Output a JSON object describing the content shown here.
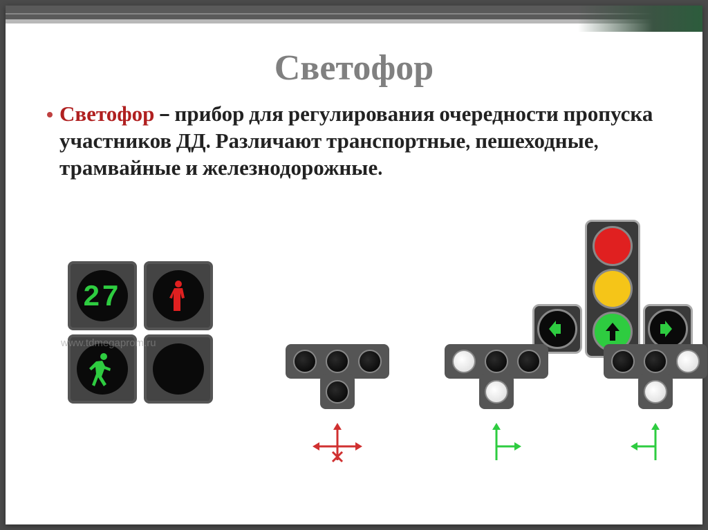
{
  "slide": {
    "title": "Светофор",
    "title_color": "#808080",
    "title_fontsize": 52,
    "term": "Светофор",
    "term_color": "#b02020",
    "definition_rest": " – прибор для регулирования очередности пропуска участников ДД. Различают транспортные, пешеходные, трамвайные и железнодорожные.",
    "body_fontsize": 31,
    "bullet_color": "#bf4040"
  },
  "frame": {
    "page_bg": "#4a4a4a",
    "slide_bg": "#ffffff",
    "topbar_color": "#5a5a5a",
    "topbar_underline": "#b8b8b8",
    "corner_accent": "#2c5c3c"
  },
  "pedestrian_signals": {
    "box_bg": "#444444",
    "box_border": "#555555",
    "circle_bg": "#0a0a0a",
    "countdown_value": "27",
    "countdown_color": "#2ecc40",
    "stand_figure_color": "#e02020",
    "walk_figure_color": "#2ecc40"
  },
  "t_traffic_light": {
    "housing_color": "#3a3a3a",
    "housing_border": "#aaaaaa",
    "lamp_border": "#888888",
    "red": "#e02020",
    "yellow": "#f5c518",
    "green": "#2ecc40",
    "arrow_up_color": "#2ecc40",
    "arrow_side_color": "#2ecc40"
  },
  "tram_signals": {
    "housing_color": "#555555",
    "lamp_border": "#888888",
    "lamp_off": "#111111",
    "lamp_on": "#f0f0f0",
    "units": [
      {
        "top": [
          "off",
          "off",
          "off"
        ],
        "bottom": "off",
        "diagram": {
          "left": true,
          "up": true,
          "right": true,
          "color": "#d03030",
          "x_mark": true
        }
      },
      {
        "top": [
          "on",
          "off",
          "off"
        ],
        "bottom": "on",
        "diagram": {
          "left": false,
          "up": true,
          "right": true,
          "color": "#2ecc40",
          "x_mark": false
        }
      },
      {
        "top": [
          "off",
          "off",
          "on"
        ],
        "bottom": "on",
        "diagram": {
          "left": true,
          "up": true,
          "right": false,
          "color": "#2ecc40",
          "x_mark": false
        }
      }
    ]
  },
  "watermark": "www.tdmegaprom.ru"
}
